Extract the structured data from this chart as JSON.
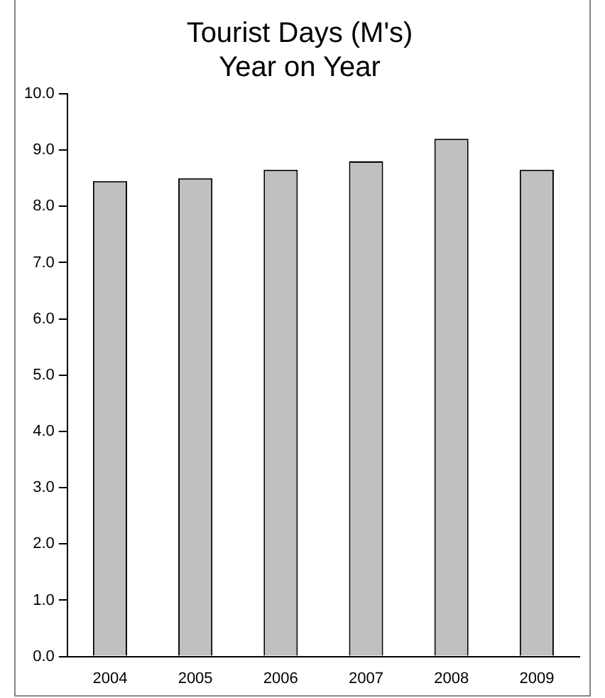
{
  "chart_data": {
    "type": "bar",
    "title": [
      "Tourist Days (M's)",
      "Year on Year"
    ],
    "categories": [
      "2004",
      "2005",
      "2006",
      "2007",
      "2008",
      "2009"
    ],
    "values": [
      8.45,
      8.5,
      8.65,
      8.8,
      9.2,
      8.65
    ],
    "color": "#c0c0c0",
    "ylim": [
      0,
      10
    ],
    "yticks": [
      {
        "value": 0,
        "label": "0.0"
      },
      {
        "value": 1,
        "label": "1.0"
      },
      {
        "value": 2,
        "label": "2.0"
      },
      {
        "value": 3,
        "label": "3.0"
      },
      {
        "value": 4,
        "label": "4.0"
      },
      {
        "value": 5,
        "label": "5.0"
      },
      {
        "value": 6,
        "label": "6.0"
      },
      {
        "value": 7,
        "label": "7.0"
      },
      {
        "value": 8,
        "label": "8.0"
      },
      {
        "value": 9,
        "label": "9.0"
      },
      {
        "value": 10,
        "label": "10.0"
      }
    ],
    "grid": false,
    "legend": false
  }
}
